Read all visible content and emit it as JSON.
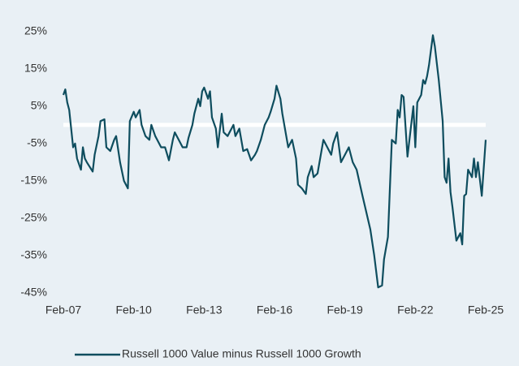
{
  "chart_data": {
    "type": "line",
    "x": [
      "2007-02",
      "2007-03",
      "2007-04",
      "2007-05",
      "2007-07",
      "2007-08",
      "2007-09",
      "2007-11",
      "2007-12",
      "2008-01",
      "2008-02",
      "2008-05",
      "2008-06",
      "2008-08",
      "2008-09",
      "2008-11",
      "2008-12",
      "2009-02",
      "2009-04",
      "2009-05",
      "2009-07",
      "2009-09",
      "2009-11",
      "2009-12",
      "2010-02",
      "2010-03",
      "2010-05",
      "2010-06",
      "2010-08",
      "2010-10",
      "2010-11",
      "2011-01",
      "2011-02",
      "2011-04",
      "2011-06",
      "2011-08",
      "2011-10",
      "2011-11",
      "2012-01",
      "2012-03",
      "2012-05",
      "2012-06",
      "2012-08",
      "2012-09",
      "2012-11",
      "2012-12",
      "2013-01",
      "2013-02",
      "2013-04",
      "2013-05",
      "2013-06",
      "2013-08",
      "2013-09",
      "2013-11",
      "2013-12",
      "2014-02",
      "2014-04",
      "2014-05",
      "2014-06",
      "2014-08",
      "2014-10",
      "2014-12",
      "2015-02",
      "2015-04",
      "2015-05",
      "2015-07",
      "2015-09",
      "2015-11",
      "2015-12",
      "2016-02",
      "2016-03",
      "2016-05",
      "2016-06",
      "2016-08",
      "2016-09",
      "2016-11",
      "2017-01",
      "2017-02",
      "2017-04",
      "2017-06",
      "2017-07",
      "2017-09",
      "2017-10",
      "2017-12",
      "2018-02",
      "2018-03",
      "2018-05",
      "2018-07",
      "2018-08",
      "2018-10",
      "2018-12",
      "2019-02",
      "2019-04",
      "2019-06",
      "2019-08",
      "2019-11",
      "2020-03",
      "2020-05",
      "2020-07",
      "2020-09",
      "2020-10",
      "2020-12",
      "2021-02",
      "2021-04",
      "2021-05",
      "2021-06",
      "2021-07",
      "2021-08",
      "2021-10",
      "2022-01",
      "2022-02",
      "2022-03",
      "2022-05",
      "2022-06",
      "2022-07",
      "2022-08",
      "2022-09",
      "2022-10",
      "2022-11",
      "2022-12",
      "2023-02",
      "2023-04",
      "2023-05",
      "2023-06",
      "2023-07",
      "2023-08",
      "2023-09",
      "2023-11",
      "2024-01",
      "2024-02",
      "2024-03",
      "2024-04",
      "2024-05",
      "2024-07",
      "2024-08",
      "2024-09",
      "2024-10",
      "2024-12",
      "2025-02"
    ],
    "series": [
      {
        "name": "Russell 1000 Value minus Russell 1000 Growth",
        "color": "#0e4d5e",
        "values": [
          8,
          9.5,
          6,
          4,
          -6,
          -5,
          -9,
          -12,
          -6,
          -9,
          -10,
          -12.5,
          -8,
          -3,
          1,
          1.5,
          -6,
          -7,
          -4,
          -3,
          -10,
          -15,
          -17,
          1,
          3.5,
          2,
          4,
          0,
          -3,
          -4,
          0,
          -3,
          -4,
          -6,
          -6,
          -9.5,
          -4,
          -2,
          -4,
          -6,
          -6,
          -3.5,
          0,
          3,
          7,
          5,
          9,
          10,
          7,
          9,
          2,
          -1,
          -6,
          3,
          -2,
          -3,
          -1,
          0,
          -3,
          -1,
          -7,
          -6.5,
          -9.5,
          -8,
          -7,
          -4,
          0,
          2,
          3.5,
          7,
          10.5,
          7,
          3,
          -3,
          -6,
          -4,
          -9,
          -16,
          -17,
          -18.5,
          -14,
          -11,
          -14,
          -13,
          -7,
          -4,
          -6,
          -8,
          -5,
          -2,
          -10,
          -8,
          -6,
          -10,
          -12,
          -19,
          -28,
          -35,
          -43.5,
          -43,
          -36,
          -30,
          -4,
          -5,
          4,
          2,
          8,
          7.5,
          -8.5,
          5,
          -6,
          6,
          8,
          12,
          11,
          13,
          16,
          20,
          24,
          21,
          12,
          1,
          -14,
          -15.5,
          -9,
          -18,
          -22,
          -31,
          -29,
          -32,
          -19,
          -18.5,
          -12,
          -14,
          -9,
          -14,
          -10,
          -19,
          -4
        ]
      }
    ],
    "xlim": [
      "2007-02",
      "2025-02"
    ],
    "xticks": [
      {
        "value": "2007-02",
        "label": "Feb-07"
      },
      {
        "value": "2010-02",
        "label": "Feb-10"
      },
      {
        "value": "2013-02",
        "label": "Feb-13"
      },
      {
        "value": "2016-02",
        "label": "Feb-16"
      },
      {
        "value": "2019-02",
        "label": "Feb-19"
      },
      {
        "value": "2022-02",
        "label": "Feb-22"
      },
      {
        "value": "2025-02",
        "label": "Feb-25"
      }
    ],
    "ylim": [
      -45,
      28
    ],
    "yticks": [
      {
        "value": 25,
        "label": "25%"
      },
      {
        "value": 15,
        "label": "15%"
      },
      {
        "value": 5,
        "label": "5%"
      },
      {
        "value": -5,
        "label": "-5%"
      },
      {
        "value": -15,
        "label": "-15%"
      },
      {
        "value": -25,
        "label": "-25%"
      },
      {
        "value": -35,
        "label": "-35%"
      },
      {
        "value": -45,
        "label": "-45%"
      }
    ],
    "reference_line": 0,
    "legend": "bottom",
    "background": "#e9f0f5"
  }
}
